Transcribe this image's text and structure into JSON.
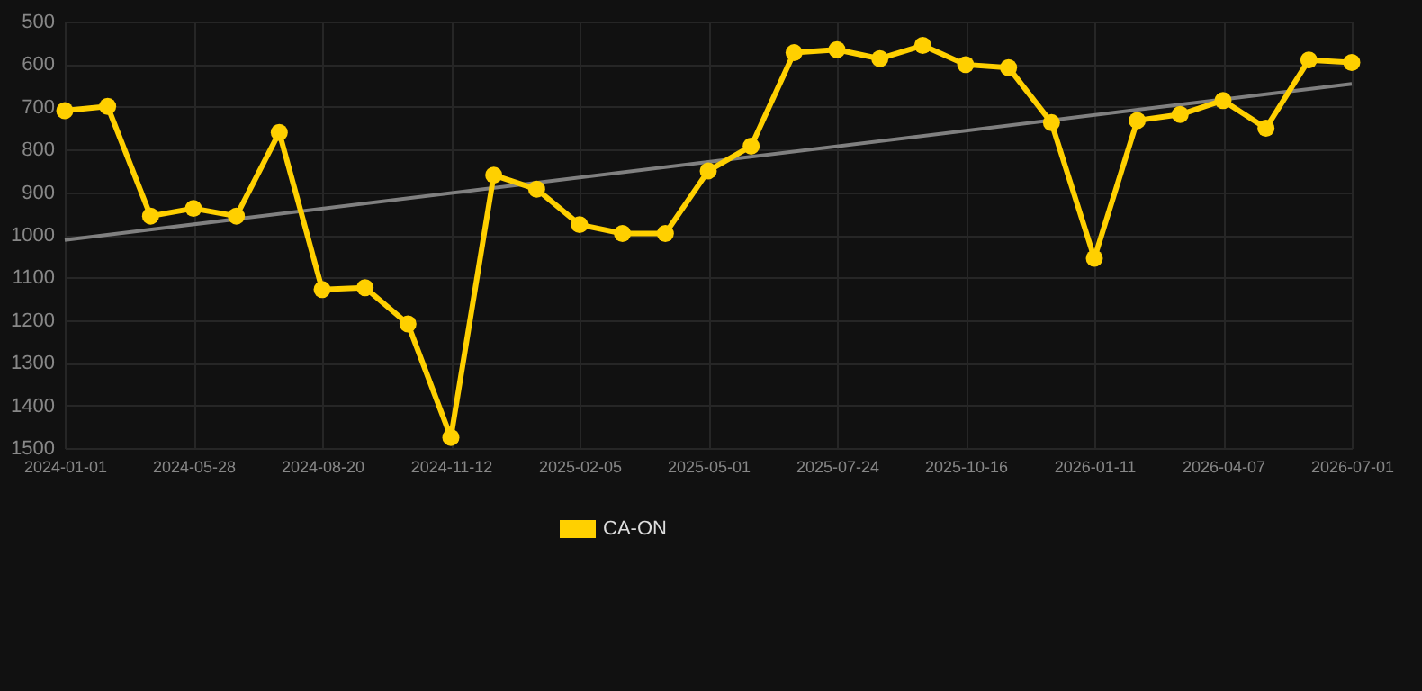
{
  "chart_data": {
    "type": "line",
    "categories": [
      "2024-01-01",
      null,
      null,
      "2024-05-28",
      null,
      null,
      "2024-08-20",
      null,
      null,
      "2024-11-12",
      null,
      null,
      "2025-02-05",
      null,
      null,
      "2025-05-01",
      null,
      null,
      "2025-07-24",
      null,
      null,
      "2025-10-16",
      null,
      null,
      "2026-01-11",
      null,
      null,
      "2026-04-07",
      null,
      null,
      "2026-07-01"
    ],
    "series": [
      {
        "name": "CA-ON",
        "color": "#ffd000",
        "values": [
          709,
          699,
          956,
          938,
          956,
          760,
          1128,
          1124,
          1209,
          1475,
          860,
          893,
          976,
          997,
          997,
          850,
          792,
          573,
          566,
          587,
          556,
          601,
          608,
          737,
          1055,
          732,
          718,
          685,
          750,
          590,
          596
        ]
      },
      {
        "type": "line",
        "color": "#808080",
        "marker": "none",
        "values": [
          1012,
          null,
          null,
          null,
          null,
          null,
          null,
          null,
          null,
          null,
          null,
          null,
          null,
          null,
          null,
          null,
          null,
          null,
          null,
          null,
          null,
          null,
          null,
          null,
          null,
          null,
          null,
          null,
          null,
          null,
          646
        ]
      }
    ],
    "ylim": [
      1500,
      500
    ],
    "yticks": [
      500,
      600,
      700,
      800,
      900,
      1000,
      1100,
      1200,
      1300,
      1400,
      1500
    ],
    "grid": true,
    "legend": "bottom",
    "marker": "circle"
  }
}
